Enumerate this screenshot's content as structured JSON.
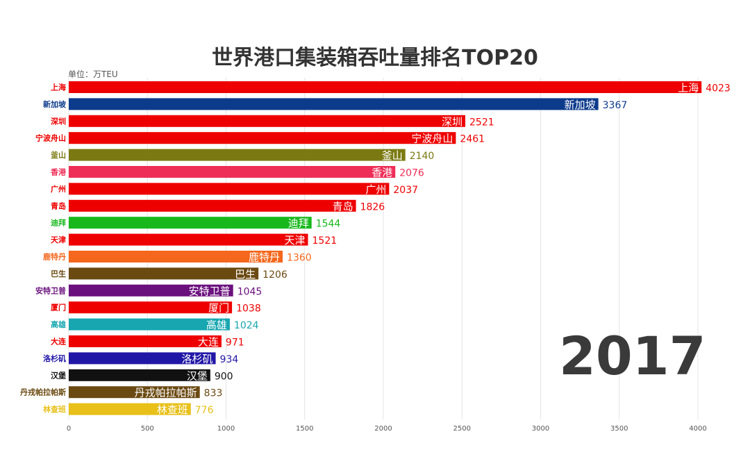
{
  "title": "世界港口集装箱吞吐量排名TOP20",
  "unit_label": "单位：万TEU",
  "year": "2017",
  "chart_data": {
    "type": "bar",
    "orientation": "horizontal",
    "title": "世界港口集装箱吞吐量排名TOP20",
    "xlim": [
      0,
      4000
    ],
    "ticks": [
      "0",
      "500",
      "1000",
      "1500",
      "2000",
      "2500",
      "3000",
      "3500",
      "4000"
    ],
    "grid": true,
    "categories": [
      "上海",
      "新加坡",
      "深圳",
      "宁波舟山",
      "釜山",
      "香港",
      "广州",
      "青岛",
      "迪拜",
      "天津",
      "鹿特丹",
      "巴生",
      "安特卫普",
      "厦门",
      "高雄",
      "大连",
      "洛杉矶",
      "汉堡",
      "丹戎帕拉帕斯",
      "林查班"
    ],
    "values": [
      4023,
      3367,
      2521,
      2461,
      2140,
      2076,
      2037,
      1826,
      1544,
      1521,
      1360,
      1206,
      1045,
      1038,
      1024,
      971,
      934,
      900,
      833,
      776
    ],
    "colors": [
      "#ee0000",
      "#0d3b8c",
      "#ee0000",
      "#ee0000",
      "#7b7a12",
      "#ee2e57",
      "#ee0000",
      "#ee0000",
      "#18b81c",
      "#ee0000",
      "#f4671c",
      "#6b4a12",
      "#6b117e",
      "#ee0000",
      "#18a7b0",
      "#ee0000",
      "#2117a6",
      "#111111",
      "#6b4a12",
      "#e8c019"
    ]
  }
}
